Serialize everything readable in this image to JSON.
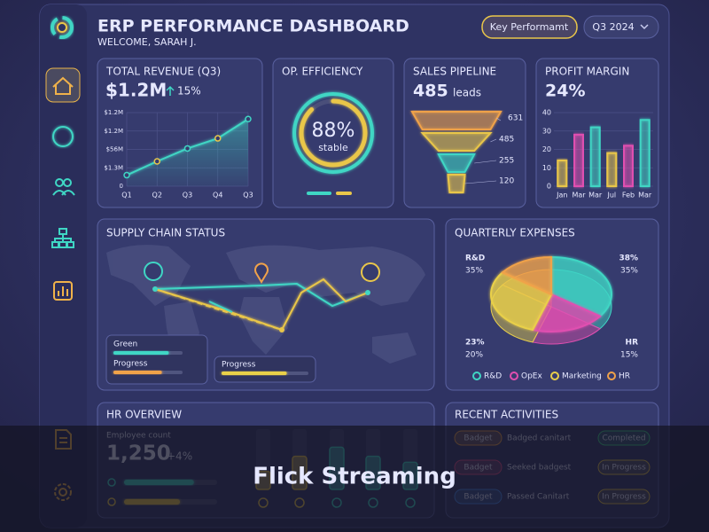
{
  "header": {
    "title": "ERP PERFORMANCE DASHBOARD",
    "welcome": "WELCOME, SARAH J.",
    "button": "Key Performamt",
    "period": "Q3 2024"
  },
  "revenue": {
    "title": "TOTAL REVENUE (Q3)",
    "value": "$1.2M",
    "change": "15%",
    "chart": {
      "type": "line",
      "categories": [
        "Q1",
        "Q2",
        "Q3",
        "Q4",
        "Q3"
      ],
      "values": [
        0.6,
        1.35,
        2.05,
        2.6,
        3.65
      ],
      "color": "#3fd6c4",
      "ylim": [
        0,
        4
      ],
      "yticks": [
        0,
        {
          "value": 1,
          "label": "$1.3M"
        },
        {
          "value": 2,
          "label": "$56M"
        },
        {
          "value": 3,
          "label": "$1.2M"
        },
        {
          "value": 4,
          "label": "$1.2M"
        }
      ]
    }
  },
  "efficiency": {
    "title": "OP. EFFICIENCY",
    "value": 88,
    "value_label": "88%",
    "status": "stable"
  },
  "pipeline": {
    "title": "SALES PIPELINE",
    "value": "485",
    "unit": "leads",
    "stages": [
      631,
      485,
      255,
      120
    ]
  },
  "profit": {
    "title": "PROFIT MARGIN",
    "value": "24%",
    "chart": {
      "type": "bar",
      "categories": [
        "Jan",
        "Mar",
        "Mar",
        "Jul",
        "Feb",
        "Mar"
      ],
      "values": [
        14,
        28,
        32,
        18,
        22,
        36
      ],
      "colors": [
        "#e9c64a",
        "#e04fb0",
        "#3fd6c4",
        "#e9c64a",
        "#e04fb0",
        "#3fd6c4"
      ],
      "ylim": [
        0,
        40
      ],
      "yticks": [
        0,
        10,
        20,
        30,
        40
      ]
    }
  },
  "supply": {
    "title": "SUPPLY CHAIN STATUS",
    "progress": [
      {
        "label": "Green",
        "value": 80,
        "color": "#3fd6c4"
      },
      {
        "label": "Progress",
        "value": 70,
        "color": "#f0a24a"
      },
      {
        "label": "Progress",
        "value": 75,
        "color": "#e9d04a"
      }
    ]
  },
  "expenses": {
    "title": "QUARTERLY EXPENSES",
    "chart": {
      "type": "pie",
      "series": [
        {
          "name": "R&D",
          "value": 35,
          "color": "#3fd6c4"
        },
        {
          "name": "OpEx",
          "value": 20,
          "color": "#e04fb0"
        },
        {
          "name": "Marketing",
          "value": 30,
          "color": "#e9d04a"
        },
        {
          "name": "HR",
          "value": 15,
          "color": "#f0a24a"
        }
      ],
      "callouts": [
        [
          "R&D",
          "35%"
        ],
        [
          "38%",
          "35%"
        ],
        [
          "23%",
          "20%"
        ],
        [
          "HR",
          "15%"
        ]
      ]
    }
  },
  "hr": {
    "title": "HR OVERVIEW",
    "label": "Employee count",
    "value": "1,250",
    "change": "+4%",
    "progress": [
      75,
      60
    ],
    "bars": [
      30,
      55,
      70,
      55,
      45
    ]
  },
  "activities": {
    "title": "RECENT ACTIVITIES",
    "rows": [
      [
        "Badget",
        "Badged canitart",
        "Completed"
      ],
      [
        "Badget",
        "Seeked badgest",
        "In Progress"
      ],
      [
        "Badget",
        "Passed Canitart",
        "In Progress"
      ]
    ]
  },
  "banner": "Flick Streaming"
}
